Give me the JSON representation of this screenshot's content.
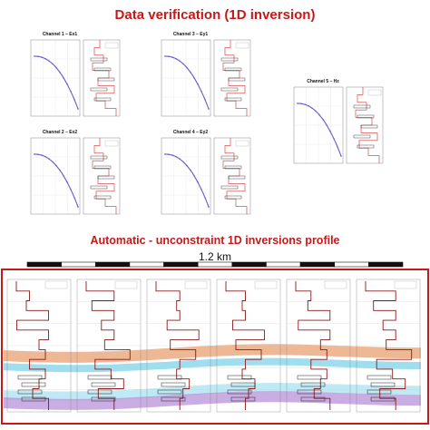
{
  "titles": {
    "top": "Data verification (1D  inversion)",
    "profile": "Automatic - unconstraint 1D inversions profile",
    "scale": "1.2 km"
  },
  "channels": [
    {
      "label": "Channel 1 – Ex1"
    },
    {
      "label": "Channel 3 – Ey1"
    },
    {
      "label": "Channel 2 – Ex2"
    },
    {
      "label": "Channel 4 – Ey2"
    },
    {
      "label": "Channel 5 – Hz"
    }
  ],
  "colors": {
    "title": "#c81818",
    "frame": "#c81818",
    "decay_curve": "#6a5acd",
    "decay_dots": "#2a2aa0",
    "model_line": "#d03030",
    "layer_orange": "#e8a070",
    "layer_blue": "#7fd3ea",
    "layer_purple": "#b48ad6"
  },
  "icons": {
    "scale_bar": "checkered-scale-bar"
  }
}
